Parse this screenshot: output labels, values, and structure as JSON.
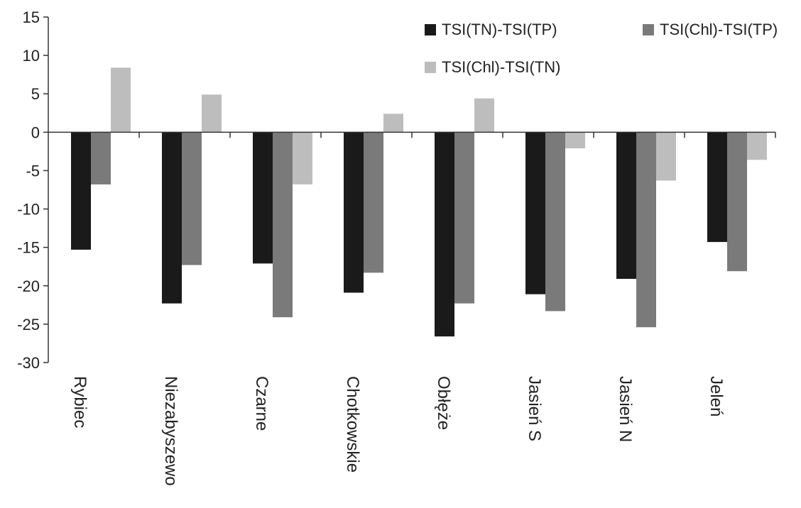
{
  "chart_data": {
    "type": "bar",
    "title": "",
    "xlabel": "",
    "ylabel": "",
    "ylim": [
      -30,
      15
    ],
    "yticks": [
      15,
      10,
      5,
      0,
      -5,
      -10,
      -15,
      -20,
      -25,
      -30
    ],
    "grid": false,
    "legend_position": "top-right",
    "categories": [
      "Rybiec",
      "Niezabyszewo",
      "Czarne",
      "Chotkowskie",
      "Obłęże",
      "Jasień S",
      "Jasień N",
      "Jeleń"
    ],
    "series": [
      {
        "name": "TSI(TN)-TSI(TP)",
        "color": "#1a1a1a",
        "values": [
          -15.3,
          -22.3,
          -17.1,
          -20.9,
          -26.6,
          -21.1,
          -19.1,
          -14.3
        ]
      },
      {
        "name": "TSI(Chl)-TSI(TP)",
        "color": "#7a7a7a",
        "values": [
          -6.8,
          -17.3,
          -24.1,
          -18.3,
          -22.3,
          -23.3,
          -25.4,
          -18.1
        ]
      },
      {
        "name": "TSI(Chl)-TSI(TN)",
        "color": "#bdbdbd",
        "values": [
          8.4,
          4.9,
          -6.8,
          2.4,
          4.4,
          -2.1,
          -6.3,
          -3.6
        ]
      }
    ]
  }
}
